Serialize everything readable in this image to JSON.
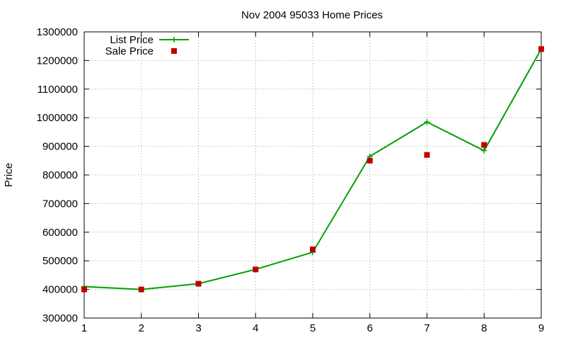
{
  "chart_data": {
    "type": "line",
    "title": "Nov 2004 95033 Home Prices",
    "xlabel": "",
    "ylabel": "Price",
    "x": [
      1,
      2,
      3,
      4,
      5,
      6,
      7,
      8,
      9
    ],
    "xlim": [
      1,
      9
    ],
    "ylim": [
      300000,
      1300000
    ],
    "x_ticks": [
      "1",
      "2",
      "3",
      "4",
      "5",
      "6",
      "7",
      "8",
      "9"
    ],
    "y_ticks": [
      "300000",
      "400000",
      "500000",
      "600000",
      "700000",
      "800000",
      "900000",
      "1000000",
      "1100000",
      "1200000",
      "1300000"
    ],
    "grid": true,
    "legend_position": "top-left",
    "series": [
      {
        "name": "List Price",
        "style": "lines+points",
        "marker": "plus",
        "color": "#00a000",
        "values": [
          410000,
          400000,
          420000,
          470000,
          530000,
          865000,
          985000,
          885000,
          1240000
        ]
      },
      {
        "name": "Sale Price",
        "style": "points",
        "marker": "square",
        "color": "#c00000",
        "values": [
          400000,
          400000,
          420000,
          470000,
          540000,
          850000,
          870000,
          905000,
          1240000
        ]
      }
    ]
  }
}
